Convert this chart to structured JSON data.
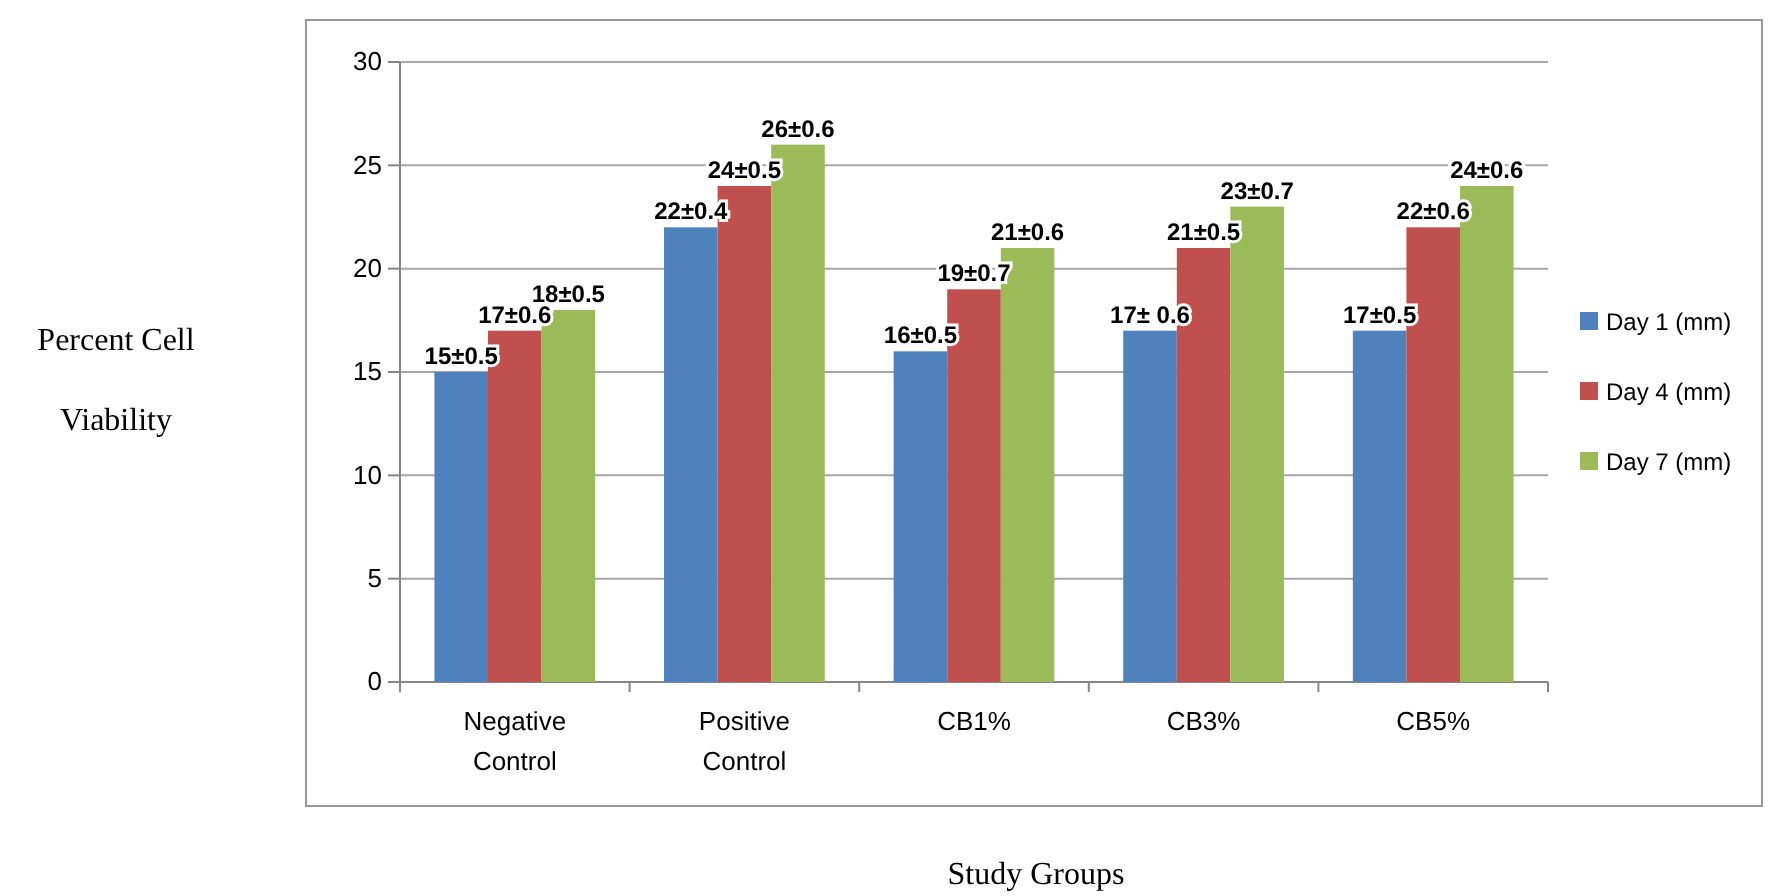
{
  "chart_data": {
    "type": "bar",
    "xlabel": "Study Groups",
    "ylabel": "Percent Cell Viability",
    "categories": [
      "Negative Control",
      "Positive Control",
      "CB1%",
      "CB3%",
      "CB5%"
    ],
    "series": [
      {
        "name": "Day 1 (mm)",
        "color": "#4f81bd",
        "values": [
          15,
          22,
          16,
          17,
          17
        ],
        "value_labels": [
          "15±0.5",
          "22±0.4",
          "16±0.5",
          "17± 0.6",
          "17±0.5"
        ]
      },
      {
        "name": "Day 4 (mm)",
        "color": "#c0504d",
        "values": [
          17,
          24,
          19,
          21,
          22
        ],
        "value_labels": [
          "17±0.6",
          "24±0.5",
          "19±0.7",
          "21±0.5",
          "22±0.6"
        ]
      },
      {
        "name": "Day 7 (mm)",
        "color": "#9bbb59",
        "values": [
          18,
          26,
          21,
          23,
          24
        ],
        "value_labels": [
          "18±0.5",
          "26±0.6",
          "21±0.6",
          "23±0.7",
          "24±0.6"
        ]
      }
    ],
    "ylim": [
      0,
      30
    ],
    "yticks": [
      0,
      5,
      10,
      15,
      20,
      25,
      30
    ],
    "grid": "y",
    "legend": "right"
  }
}
